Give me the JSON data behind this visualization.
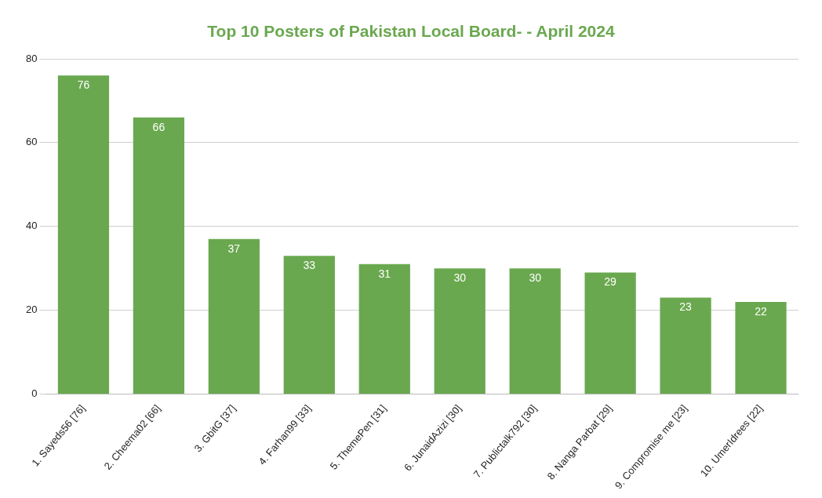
{
  "chart_data": {
    "type": "bar",
    "title": "Top 10 Posters of Pakistan Local Board- - April 2024",
    "categories": [
      "1. Sayeds56 [76]",
      "2. Cheema02 [66]",
      "3. GbitG [37]",
      "4. Farhan99 [33]",
      "5. ThemePen [31]",
      "6. JunaidAzizi [30]",
      "7. Publictalk792 [30]",
      "8. Nanga Parbat [29]",
      "9. Compromise me [23]",
      "10. UmerIdrees [22]"
    ],
    "values": [
      76,
      66,
      37,
      33,
      31,
      30,
      30,
      29,
      23,
      22
    ],
    "color": "#6aa84f",
    "ylim": [
      0,
      80
    ],
    "yticks": [
      0,
      20,
      40,
      60,
      80
    ],
    "grid": "y",
    "legend": false,
    "data_labels": true
  }
}
